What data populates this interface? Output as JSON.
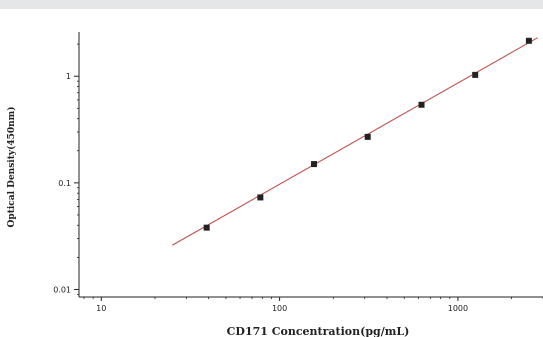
{
  "chart_data": {
    "type": "scatter",
    "xlabel": "CD171  Concentration(pg/mL)",
    "ylabel": "Optical Density(450nm)",
    "x_scale": "log",
    "y_scale": "log",
    "xlim": [
      7.5,
      3000
    ],
    "ylim": [
      0.0085,
      2.6
    ],
    "x_ticks": [
      10,
      100,
      1000
    ],
    "x_tick_labels": [
      "10",
      "100",
      "1000"
    ],
    "y_ticks": [
      0.01,
      0.1,
      1
    ],
    "y_tick_labels": [
      "0.01",
      "0.1",
      "1"
    ],
    "grid": false,
    "series": [
      {
        "type": "scatter",
        "x": [
          39,
          78,
          156,
          312,
          625,
          1250,
          2500
        ],
        "y": [
          0.038,
          0.073,
          0.15,
          0.27,
          0.54,
          1.03,
          2.15
        ],
        "color": "#222222"
      },
      {
        "type": "line",
        "x": [
          25,
          2800
        ],
        "y": [
          0.026,
          2.3
        ],
        "color": "#c0504d"
      }
    ]
  }
}
